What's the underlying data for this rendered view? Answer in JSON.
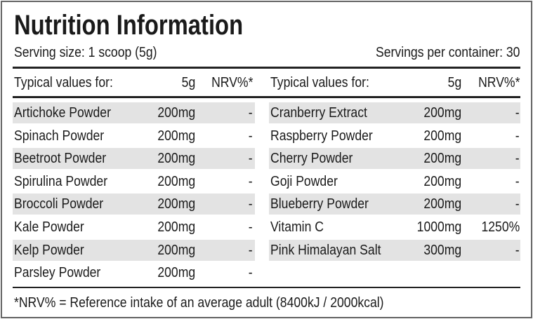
{
  "header": {
    "title": "Nutrition Information",
    "serving_size": "Serving size: 1 scoop (5g)",
    "servings": "Servings per container: 30"
  },
  "table": {
    "columns": {
      "left": [
        "Typical values for:",
        "5g",
        "NRV%*"
      ],
      "right": [
        "Typical values for:",
        "5g",
        "NRV%*"
      ]
    },
    "left": [
      [
        "Artichoke Powder",
        "200mg",
        "-"
      ],
      [
        "Spinach Powder",
        "200mg",
        "-"
      ],
      [
        "Beetroot Powder",
        "200mg",
        "-"
      ],
      [
        "Spirulina Powder",
        "200mg",
        "-"
      ],
      [
        "Broccoli Powder",
        "200mg",
        "-"
      ],
      [
        "Kale Powder",
        "200mg",
        "-"
      ],
      [
        "Kelp Powder",
        "200mg",
        "-"
      ],
      [
        "Parsley Powder",
        "200mg",
        "-"
      ]
    ],
    "right": [
      [
        "Cranberry Extract",
        "200mg",
        "-"
      ],
      [
        "Raspberry Powder",
        "200mg",
        "-"
      ],
      [
        "Cherry Powder",
        "200mg",
        "-"
      ],
      [
        "Goji Powder",
        "200mg",
        "-"
      ],
      [
        "Blueberry Powder",
        "200mg",
        "-"
      ],
      [
        "Vitamin C",
        "1000mg",
        "1250%"
      ],
      [
        "Pink Himalayan Salt",
        "300mg",
        "-"
      ]
    ]
  },
  "footer": "*NRV% = Reference intake of an average adult (8400kJ / 2000kcal)"
}
